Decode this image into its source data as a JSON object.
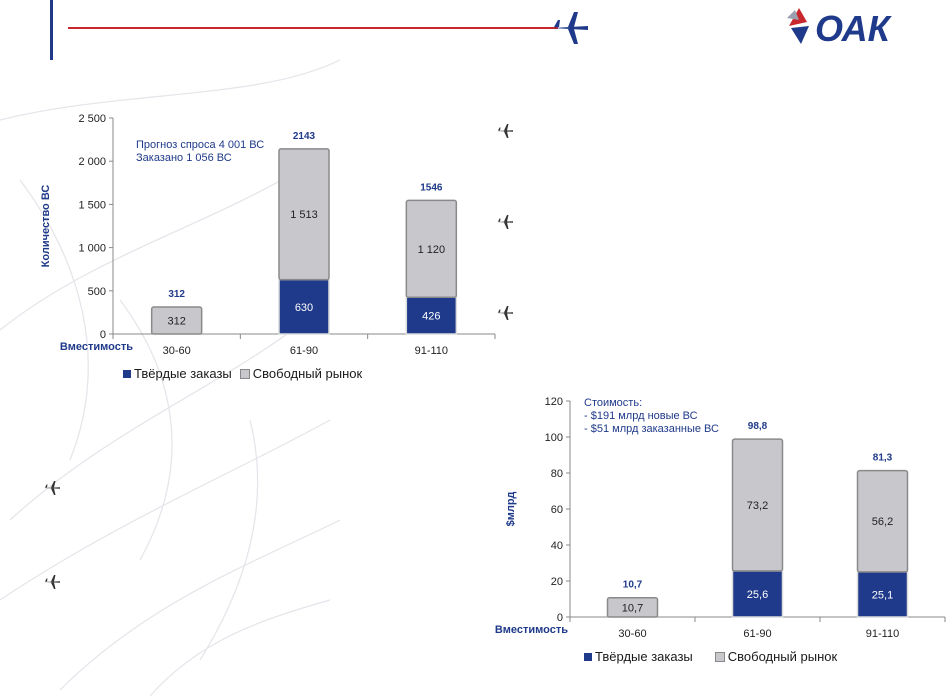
{
  "colors": {
    "firm": "#1f3a8a",
    "free": "#c8c8cc",
    "accent_red": "#c8282d",
    "brand_blue": "#1f3a8a"
  },
  "logo": {
    "text": "ОАК"
  },
  "icons": {
    "header": "airplane-icon",
    "bullets": "airplane-icon"
  },
  "chart_data": [
    {
      "type": "bar",
      "stacked": true,
      "categories": [
        "30-60",
        "61-90",
        "91-110"
      ],
      "series": [
        {
          "name": "Твёрдые заказы",
          "values": [
            0,
            630,
            426
          ],
          "labels": [
            "",
            "630",
            "426"
          ]
        },
        {
          "name": "Свободный рынок",
          "values": [
            312,
            1513,
            1120
          ],
          "labels": [
            "312",
            "1 513",
            "1 120"
          ]
        }
      ],
      "totals": [
        "312",
        "2143",
        "1546"
      ],
      "xlabel": "Вместимость",
      "ylabel": "Количество ВС",
      "ylim": [
        0,
        2500
      ],
      "yticks": [
        0,
        500,
        1000,
        1500,
        2000,
        2500
      ],
      "ytick_labels": [
        "0",
        "500",
        "1 000",
        "1 500",
        "2 000",
        "2 500"
      ],
      "annotation": [
        "Прогноз спроса  4 001 ВС",
        "Заказано  1 056 ВС"
      ],
      "legend": "bottom"
    },
    {
      "type": "bar",
      "stacked": true,
      "categories": [
        "30-60",
        "61-90",
        "91-110"
      ],
      "series": [
        {
          "name": "Твёрдые заказы",
          "values": [
            0,
            25.6,
            25.1
          ],
          "labels": [
            "",
            "25,6",
            "25,1"
          ]
        },
        {
          "name": "Свободный рынок",
          "values": [
            10.7,
            73.2,
            56.2
          ],
          "labels": [
            "10,7",
            "73,2",
            "56,2"
          ]
        }
      ],
      "totals": [
        "10,7",
        "98,8",
        "81,3"
      ],
      "xlabel": "Вместимость",
      "ylabel": "$млрд",
      "ylim": [
        0,
        120
      ],
      "yticks": [
        0,
        20,
        40,
        60,
        80,
        100,
        120
      ],
      "ytick_labels": [
        "0",
        "20",
        "40",
        "60",
        "80",
        "100",
        "120"
      ],
      "annotation": [
        "Стоимость:",
        "- $191 млрд новые ВС",
        "- $51 млрд заказанные ВС"
      ],
      "legend": "bottom"
    }
  ]
}
